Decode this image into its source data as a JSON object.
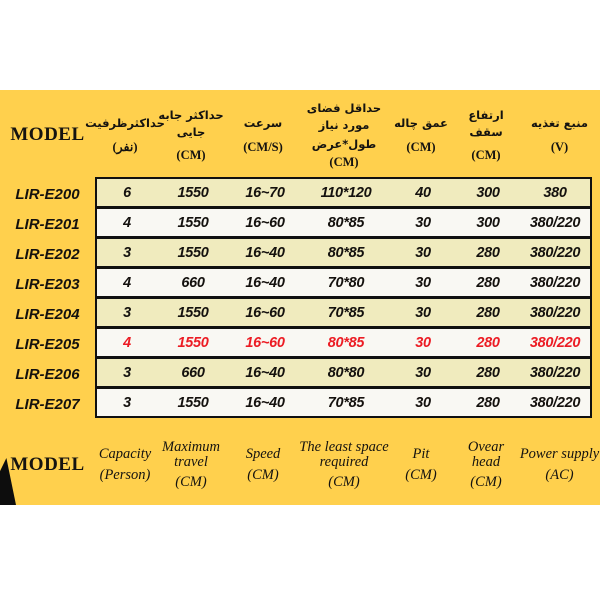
{
  "colors": {
    "background_yellow": "#FFD04D",
    "row_cream": "#F0EBBE",
    "row_white": "#F9F8F3",
    "highlight_red": "#EC1C24",
    "border_black": "#101010"
  },
  "fa_header": {
    "model": "MODEL",
    "columns": [
      {
        "title": "حداکثرظرفیت",
        "unit": "(نفر)"
      },
      {
        "title": "حداکثر جابه جایی",
        "unit": "(CM)"
      },
      {
        "title": "سرعت",
        "unit": "(CM/S)"
      },
      {
        "title": "حداقل فضای مورد نیاز",
        "title2": "طول*عرض",
        "unit": "(CM)"
      },
      {
        "title": "عمق چاله",
        "unit": "(CM)"
      },
      {
        "title": "ارتفاع سقف",
        "unit": "(CM)"
      },
      {
        "title": "منبع تغذیه",
        "unit": "(V)"
      }
    ]
  },
  "rows": [
    {
      "model": "LIR-E200",
      "cells": [
        "6",
        "1550",
        "16~70",
        "110*120",
        "40",
        "300",
        "380"
      ]
    },
    {
      "model": "LIR-E201",
      "cells": [
        "4",
        "1550",
        "16~60",
        "80*85",
        "30",
        "300",
        "380/220"
      ]
    },
    {
      "model": "LIR-E202",
      "cells": [
        "3",
        "1550",
        "16~40",
        "80*85",
        "30",
        "280",
        "380/220"
      ]
    },
    {
      "model": "LIR-E203",
      "cells": [
        "4",
        "660",
        "16~40",
        "70*80",
        "30",
        "280",
        "380/220"
      ]
    },
    {
      "model": "LIR-E204",
      "cells": [
        "3",
        "1550",
        "16~60",
        "70*85",
        "30",
        "280",
        "380/220"
      ]
    },
    {
      "model": "LIR-E205",
      "cells": [
        "4",
        "1550",
        "16~60",
        "80*85",
        "30",
        "280",
        "380/220"
      ],
      "highlight": true
    },
    {
      "model": "LIR-E206",
      "cells": [
        "3",
        "660",
        "16~40",
        "80*80",
        "30",
        "280",
        "380/220"
      ]
    },
    {
      "model": "LIR-E207",
      "cells": [
        "3",
        "1550",
        "16~40",
        "70*85",
        "30",
        "280",
        "380/220"
      ]
    }
  ],
  "en_footer": {
    "model": "MODEL",
    "columns": [
      {
        "title": "Capacity",
        "unit": "(Person)"
      },
      {
        "title": "Maximum travel",
        "unit": "(CM)"
      },
      {
        "title": "Speed",
        "unit": "(CM)"
      },
      {
        "title": "The least space required",
        "unit": "(CM)"
      },
      {
        "title": "Pit",
        "unit": "(CM)"
      },
      {
        "title": "Ovear head",
        "unit": "(CM)"
      },
      {
        "title": "Power supply",
        "unit": "(AC)"
      }
    ]
  }
}
